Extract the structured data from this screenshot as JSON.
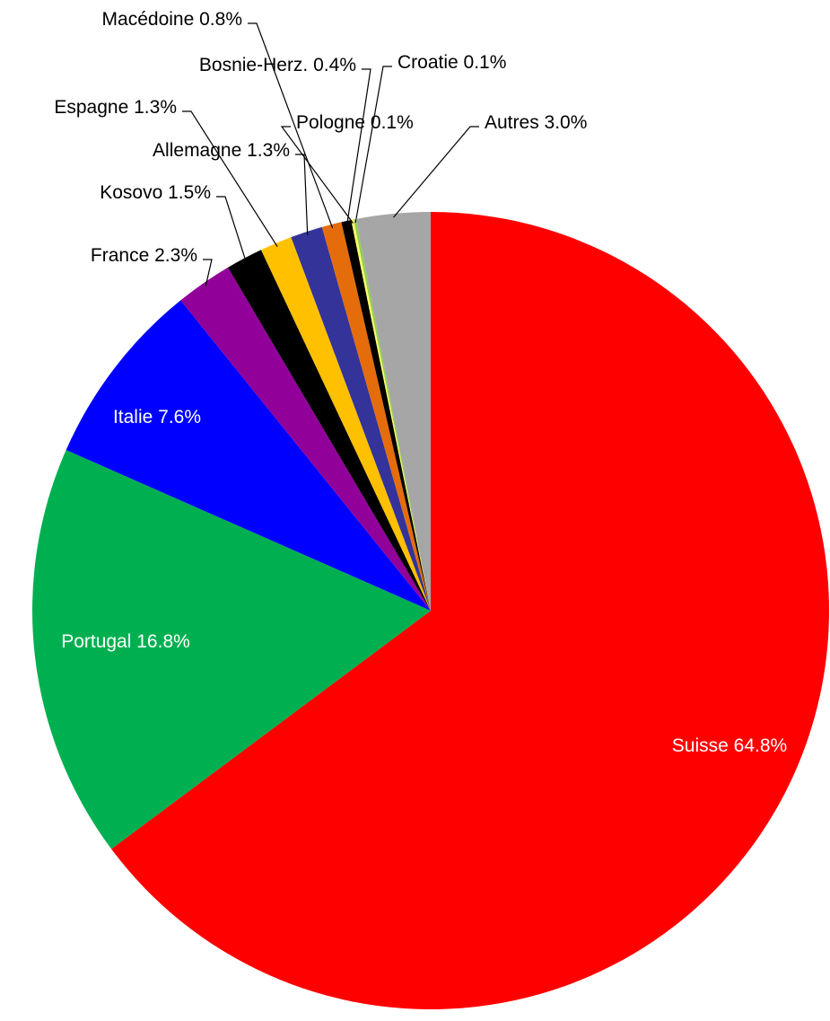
{
  "chart_data": {
    "type": "pie",
    "categories": [
      "Suisse",
      "Portugal",
      "Italie",
      "France",
      "Kosovo",
      "Espagne",
      "Allemagne",
      "Macédoine",
      "Bosnie-Herz.",
      "Pologne",
      "Croatie",
      "Autres"
    ],
    "values": [
      64.8,
      16.8,
      7.6,
      2.3,
      1.5,
      1.3,
      1.3,
      0.8,
      0.4,
      0.1,
      0.1,
      3.0
    ],
    "value_labels": [
      "64.8%",
      "16.8%",
      "7.6%",
      "2.3%",
      "1.5%",
      "1.3%",
      "1.3%",
      "0.8%",
      "0.4%",
      "0.1%",
      "0.1%",
      "3.0%"
    ],
    "colors": [
      "#ff0000",
      "#00b050",
      "#0000ff",
      "#92009a",
      "#000000",
      "#ffc000",
      "#333399",
      "#e46c0a",
      "#000000",
      "#ffff66",
      "#92d050",
      "#a6a6a6"
    ]
  }
}
